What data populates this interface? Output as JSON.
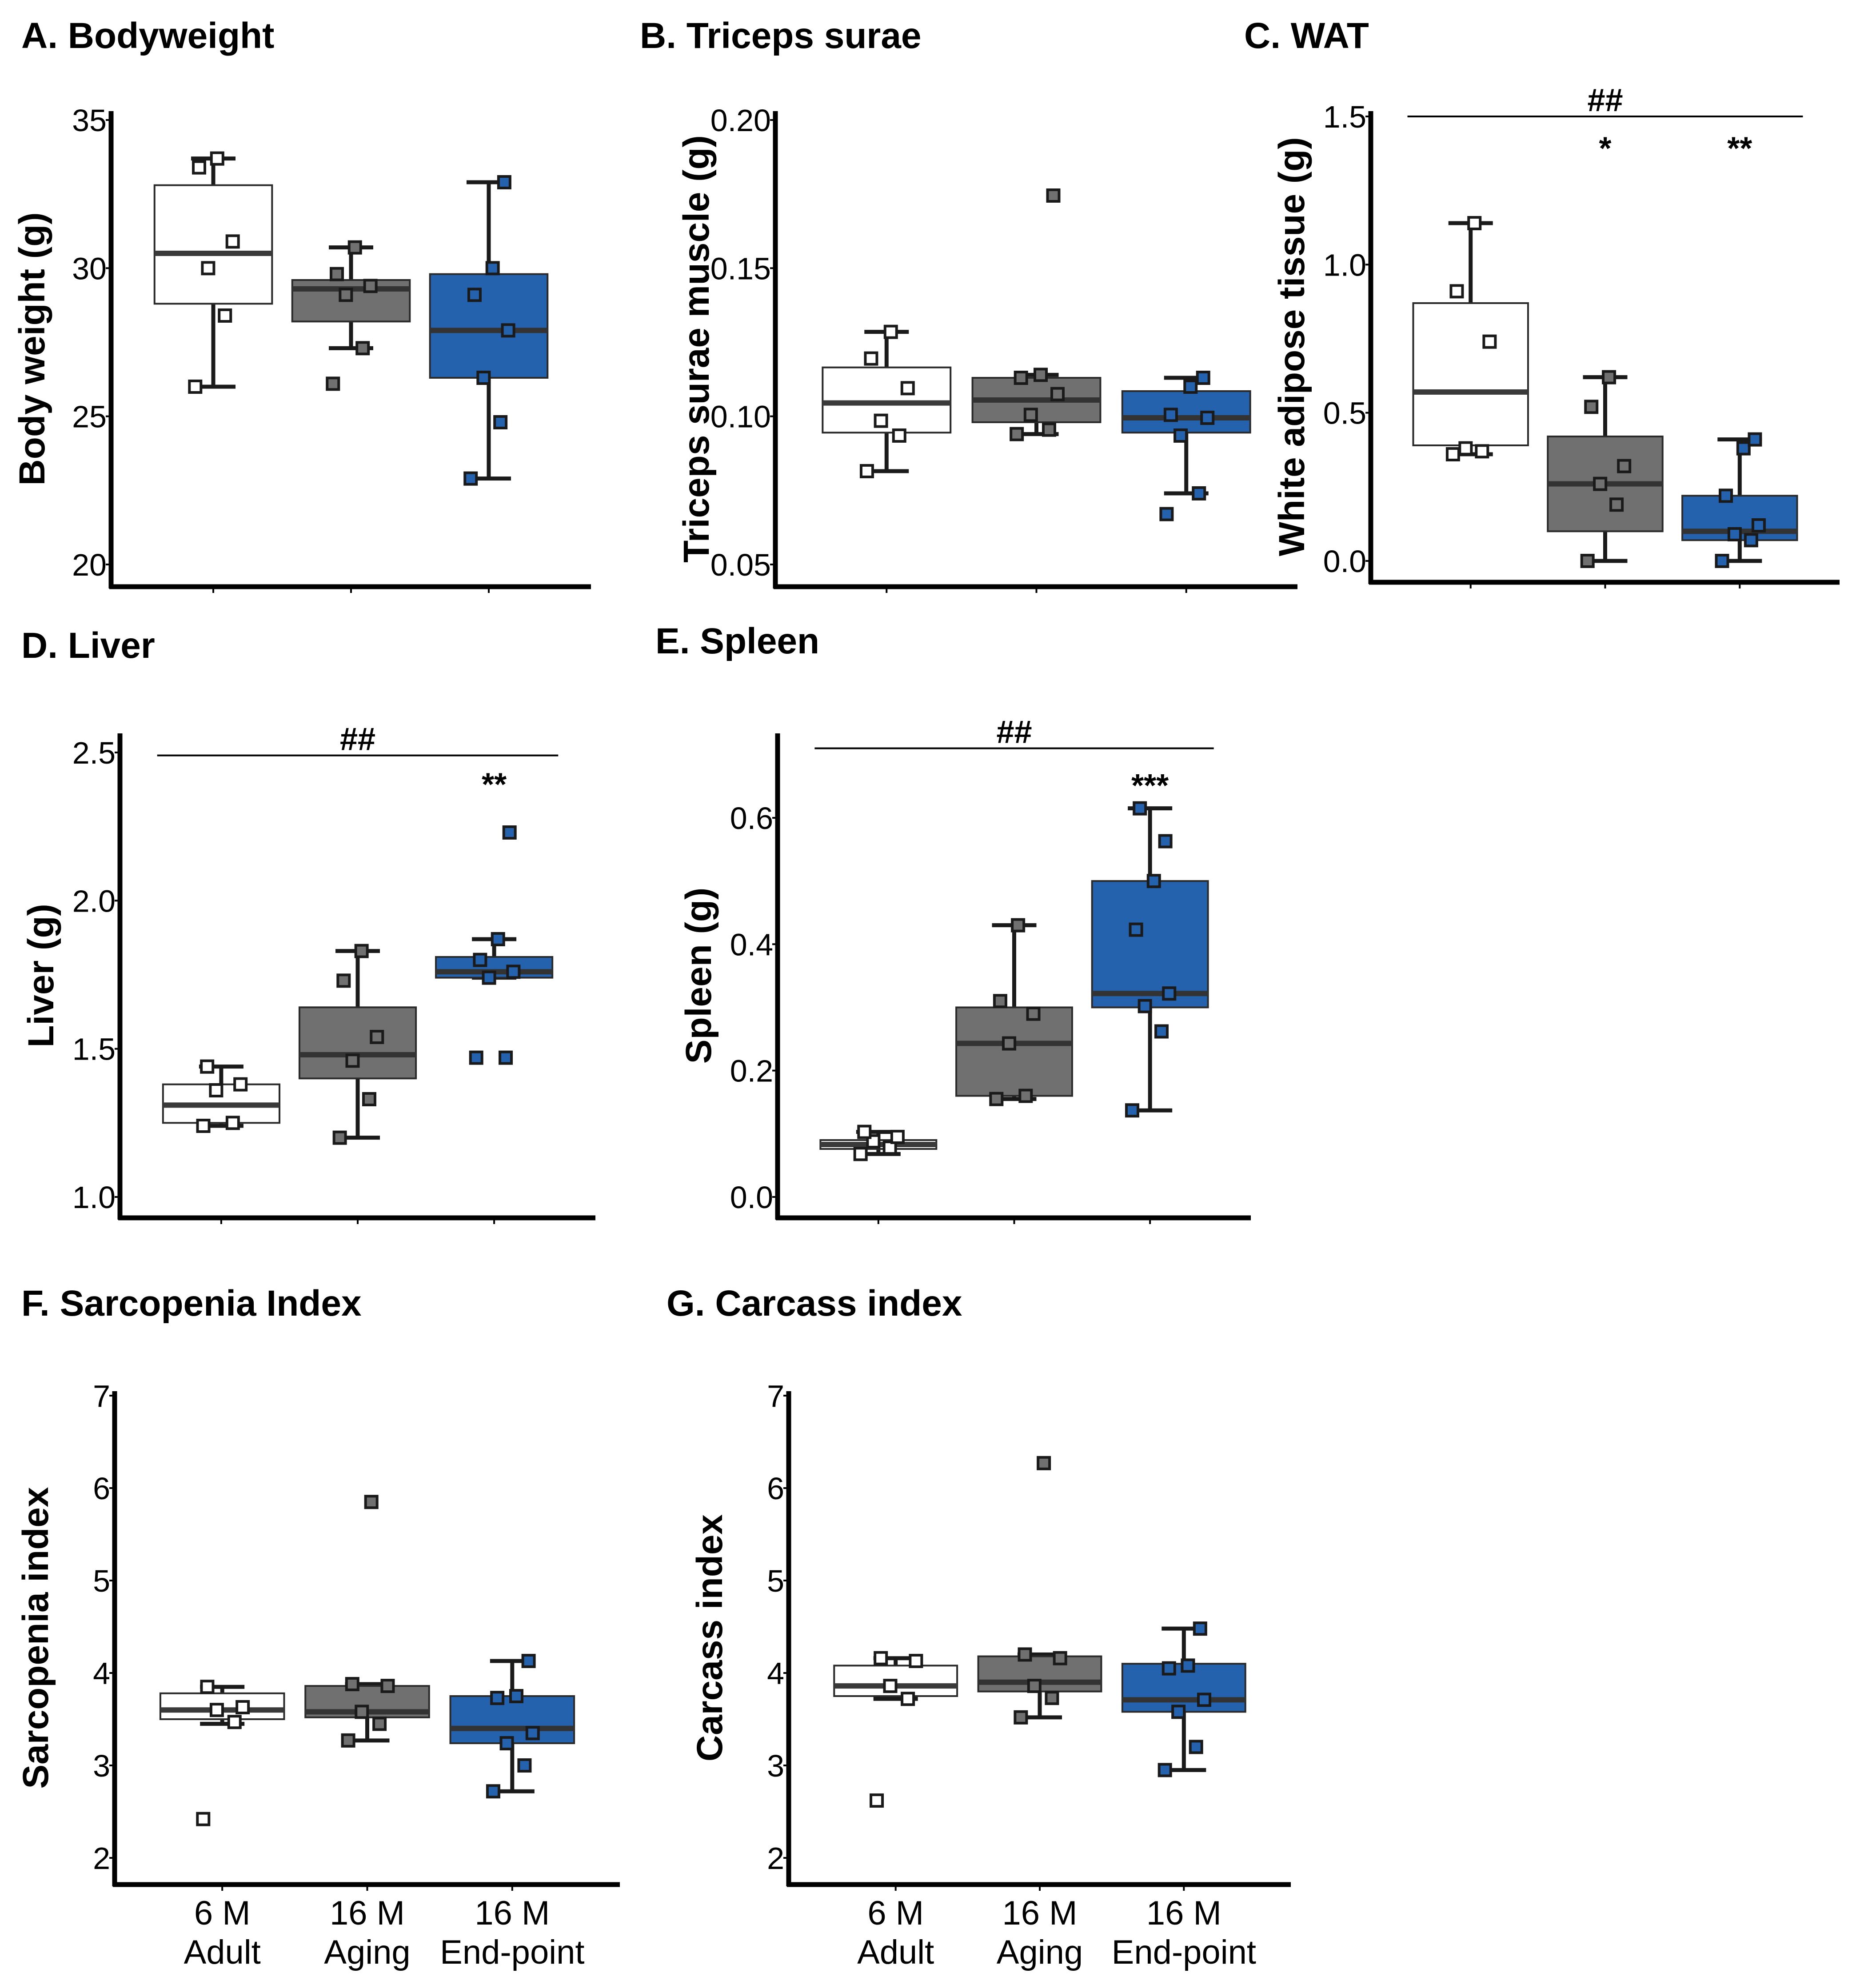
{
  "colors": {
    "adult": "#ffffff",
    "aging": "#707070",
    "endpoint": "#2462ae",
    "outline": "#1a1a1a",
    "median": "#3a3a3a"
  },
  "groups": [
    {
      "label_line1": "6 M",
      "label_line2": "Adult",
      "color": "#ffffff"
    },
    {
      "label_line1": "16 M",
      "label_line2": "Aging",
      "color": "#707070"
    },
    {
      "label_line1": "16 M",
      "label_line2": "End-point",
      "color": "#2462ae"
    }
  ],
  "chart_data": [
    {
      "id": "A",
      "type": "box",
      "title": "A. Bodyweight",
      "ylabel": "Body weight (g)",
      "ylim": [
        20,
        35
      ],
      "yticks": [
        20,
        25,
        30,
        35
      ],
      "tick_labels": [
        "20",
        "25",
        "30",
        "35"
      ],
      "show_categories": false,
      "boxes": [
        {
          "q1": 28.8,
          "median": 30.5,
          "q3": 32.8,
          "whisker_low": 26.0,
          "whisker_high": 33.7,
          "outliers": []
        },
        {
          "q1": 28.2,
          "median": 29.3,
          "q3": 29.6,
          "whisker_low": 27.3,
          "whisker_high": 30.7,
          "outliers": [
            26.1
          ]
        },
        {
          "q1": 26.3,
          "median": 27.9,
          "q3": 29.8,
          "whisker_low": 22.9,
          "whisker_high": 32.9,
          "outliers": []
        }
      ],
      "points": [
        [
          26.0,
          28.4,
          30.0,
          30.9,
          33.4,
          33.7
        ],
        [
          26.1,
          27.3,
          29.1,
          29.4,
          29.8,
          30.7
        ],
        [
          22.9,
          24.8,
          26.3,
          27.9,
          29.1,
          30.0,
          32.9
        ]
      ],
      "significance": []
    },
    {
      "id": "B",
      "type": "box",
      "title": "B. Triceps surae",
      "ylabel": "Triceps surae muscle (g)",
      "ylim": [
        0.05,
        0.2
      ],
      "yticks": [
        0.05,
        0.1,
        0.15,
        0.2
      ],
      "tick_labels": [
        "0.05",
        "0.10",
        "0.15",
        "0.20"
      ],
      "show_categories": false,
      "boxes": [
        {
          "q1": 0.0945,
          "median": 0.1045,
          "q3": 0.1165,
          "whisker_low": 0.0815,
          "whisker_high": 0.1285,
          "outliers": []
        },
        {
          "q1": 0.098,
          "median": 0.1055,
          "q3": 0.113,
          "whisker_low": 0.094,
          "whisker_high": 0.114,
          "outliers": [
            0.1745
          ]
        },
        {
          "q1": 0.0945,
          "median": 0.0995,
          "q3": 0.1085,
          "whisker_low": 0.074,
          "whisker_high": 0.113,
          "outliers": [
            0.067
          ]
        }
      ],
      "points": [
        [
          0.0815,
          0.0935,
          0.0985,
          0.1095,
          0.1195,
          0.1285
        ],
        [
          0.094,
          0.0955,
          0.1005,
          0.1075,
          0.113,
          0.114,
          0.1745
        ],
        [
          0.067,
          0.074,
          0.0935,
          0.0995,
          0.1005,
          0.11,
          0.113
        ]
      ],
      "significance": []
    },
    {
      "id": "C",
      "type": "box",
      "title": "C. WAT",
      "ylabel": "White adipose tissue (g)",
      "ylim": [
        0.0,
        1.5
      ],
      "yticks": [
        0.0,
        0.5,
        1.0,
        1.5
      ],
      "tick_labels": [
        "0.0",
        "0.5",
        "1.0",
        "1.5"
      ],
      "show_categories": false,
      "boxes": [
        {
          "q1": 0.39,
          "median": 0.57,
          "q3": 0.87,
          "whisker_low": 0.36,
          "whisker_high": 1.14,
          "outliers": []
        },
        {
          "q1": 0.1,
          "median": 0.26,
          "q3": 0.42,
          "whisker_low": 0.0,
          "whisker_high": 0.62,
          "outliers": []
        },
        {
          "q1": 0.07,
          "median": 0.1,
          "q3": 0.22,
          "whisker_low": 0.0,
          "whisker_high": 0.41,
          "outliers": []
        }
      ],
      "points": [
        [
          0.36,
          0.37,
          0.38,
          0.74,
          0.91,
          1.14
        ],
        [
          0.0,
          0.19,
          0.26,
          0.32,
          0.52,
          0.62
        ],
        [
          0.0,
          0.07,
          0.09,
          0.12,
          0.22,
          0.38,
          0.41
        ]
      ],
      "significance": [
        {
          "type": "bracket",
          "label": "##",
          "from": 0,
          "to": 2,
          "y": 1.5
        },
        {
          "type": "star",
          "label": "*",
          "group": 1,
          "y": 1.4
        },
        {
          "type": "star",
          "label": "**",
          "group": 2,
          "y": 1.4
        }
      ]
    },
    {
      "id": "D",
      "type": "box",
      "title": "D. Liver",
      "ylabel": "Liver (g)",
      "ylim": [
        1.0,
        2.5
      ],
      "yticks": [
        1.0,
        1.5,
        2.0,
        2.5
      ],
      "tick_labels": [
        "1.0",
        "1.5",
        "2.0",
        "2.5"
      ],
      "show_categories": false,
      "boxes": [
        {
          "q1": 1.25,
          "median": 1.31,
          "q3": 1.38,
          "whisker_low": 1.24,
          "whisker_high": 1.44,
          "outliers": []
        },
        {
          "q1": 1.4,
          "median": 1.48,
          "q3": 1.64,
          "whisker_low": 1.2,
          "whisker_high": 1.83,
          "outliers": []
        },
        {
          "q1": 1.74,
          "median": 1.76,
          "q3": 1.81,
          "whisker_low": 1.74,
          "whisker_high": 1.87,
          "outliers": [
            1.47,
            1.47,
            2.23
          ]
        }
      ],
      "points": [
        [
          1.24,
          1.25,
          1.36,
          1.38,
          1.44
        ],
        [
          1.2,
          1.33,
          1.46,
          1.54,
          1.73,
          1.83
        ],
        [
          1.47,
          1.47,
          1.74,
          1.76,
          1.8,
          1.87,
          2.23
        ]
      ],
      "significance": [
        {
          "type": "bracket",
          "label": "##",
          "from": 0,
          "to": 2,
          "y": 2.49
        },
        {
          "type": "star",
          "label": "**",
          "group": 2,
          "y": 2.4
        }
      ]
    },
    {
      "id": "E",
      "type": "box",
      "title": "E. Spleen",
      "ylabel": "Spleen (g)",
      "ylim": [
        0.0,
        0.7
      ],
      "yticks": [
        0.0,
        0.2,
        0.4,
        0.6
      ],
      "tick_labels": [
        "0.0",
        "0.2",
        "0.4",
        "0.6"
      ],
      "show_categories": false,
      "boxes": [
        {
          "q1": 0.076,
          "median": 0.083,
          "q3": 0.09,
          "whisker_low": 0.068,
          "whisker_high": 0.103,
          "outliers": []
        },
        {
          "q1": 0.16,
          "median": 0.243,
          "q3": 0.3,
          "whisker_low": 0.155,
          "whisker_high": 0.43,
          "outliers": []
        },
        {
          "q1": 0.3,
          "median": 0.322,
          "q3": 0.5,
          "whisker_low": 0.137,
          "whisker_high": 0.615,
          "outliers": []
        }
      ],
      "points": [
        [
          0.068,
          0.078,
          0.088,
          0.095,
          0.103
        ],
        [
          0.155,
          0.16,
          0.243,
          0.29,
          0.31,
          0.43
        ],
        [
          0.137,
          0.262,
          0.302,
          0.322,
          0.423,
          0.5,
          0.563,
          0.615
        ]
      ],
      "significance": [
        {
          "type": "bracket",
          "label": "##",
          "from": 0,
          "to": 2,
          "y": 0.71
        },
        {
          "type": "star",
          "label": "***",
          "group": 2,
          "y": 0.655
        }
      ]
    },
    {
      "id": "F",
      "type": "box",
      "title": "F. Sarcopenia Index",
      "ylabel": "Sarcopenia index",
      "ylim": [
        2.0,
        7.0
      ],
      "yticks": [
        2,
        3,
        4,
        5,
        6,
        7
      ],
      "tick_labels": [
        "2",
        "3",
        "4",
        "5",
        "6",
        "7"
      ],
      "show_categories": true,
      "boxes": [
        {
          "q1": 3.5,
          "median": 3.6,
          "q3": 3.78,
          "whisker_low": 3.45,
          "whisker_high": 3.85,
          "outliers": [
            2.42
          ]
        },
        {
          "q1": 3.52,
          "median": 3.58,
          "q3": 3.86,
          "whisker_low": 3.27,
          "whisker_high": 3.88,
          "outliers": [
            5.85
          ]
        },
        {
          "q1": 3.24,
          "median": 3.4,
          "q3": 3.75,
          "whisker_low": 2.72,
          "whisker_high": 4.13,
          "outliers": []
        }
      ],
      "points": [
        [
          2.42,
          3.47,
          3.6,
          3.63,
          3.85
        ],
        [
          3.27,
          3.45,
          3.58,
          3.86,
          3.88,
          5.85
        ],
        [
          2.72,
          3.0,
          3.24,
          3.35,
          3.73,
          3.75,
          4.13
        ]
      ],
      "significance": []
    },
    {
      "id": "G",
      "type": "box",
      "title": "G. Carcass index",
      "ylabel": "Carcass index",
      "ylim": [
        2.0,
        7.0
      ],
      "yticks": [
        2,
        3,
        4,
        5,
        6,
        7
      ],
      "tick_labels": [
        "2",
        "3",
        "4",
        "5",
        "6",
        "7"
      ],
      "show_categories": true,
      "boxes": [
        {
          "q1": 3.75,
          "median": 3.86,
          "q3": 4.08,
          "whisker_low": 3.72,
          "whisker_high": 4.16,
          "outliers": [
            2.62
          ]
        },
        {
          "q1": 3.8,
          "median": 3.9,
          "q3": 4.18,
          "whisker_low": 3.52,
          "whisker_high": 4.2,
          "outliers": [
            6.27
          ]
        },
        {
          "q1": 3.58,
          "median": 3.71,
          "q3": 4.1,
          "whisker_low": 2.95,
          "whisker_high": 4.48,
          "outliers": []
        }
      ],
      "points": [
        [
          2.62,
          3.72,
          3.86,
          4.13,
          4.16
        ],
        [
          3.52,
          3.73,
          3.86,
          4.16,
          4.2,
          6.27
        ],
        [
          2.95,
          3.2,
          3.58,
          3.71,
          4.05,
          4.08,
          4.48
        ]
      ],
      "significance": []
    }
  ]
}
